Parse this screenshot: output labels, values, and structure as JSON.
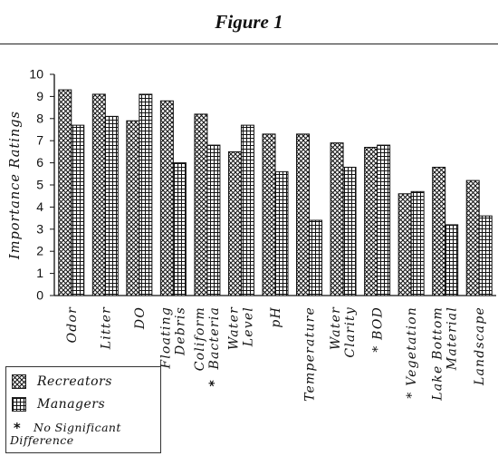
{
  "figure_title": "Figure 1",
  "chart_data": {
    "type": "bar",
    "ylabel": "Importance Ratings",
    "xlabel": "",
    "ylim": [
      0,
      10
    ],
    "yticks": [
      0,
      1,
      2,
      3,
      4,
      5,
      6,
      7,
      8,
      9,
      10
    ],
    "grid": false,
    "categories": [
      {
        "lines": [
          "Odor"
        ],
        "marked": false
      },
      {
        "lines": [
          "Litter"
        ],
        "marked": false
      },
      {
        "lines": [
          "DO"
        ],
        "marked": false
      },
      {
        "lines": [
          "Floating",
          "Debris"
        ],
        "marked": false
      },
      {
        "lines": [
          "Coliform",
          "Bacteria"
        ],
        "marked": true
      },
      {
        "lines": [
          "Water",
          "Level"
        ],
        "marked": false
      },
      {
        "lines": [
          "pH"
        ],
        "marked": false
      },
      {
        "lines": [
          "Temperature"
        ],
        "marked": false
      },
      {
        "lines": [
          "Water",
          "Clarity"
        ],
        "marked": false
      },
      {
        "lines": [
          "BOD"
        ],
        "marked": true
      },
      {
        "lines": [
          "Vegetation"
        ],
        "marked": true
      },
      {
        "lines": [
          "Lake Bottom",
          "Material"
        ],
        "marked": false
      },
      {
        "lines": [
          "Landscape"
        ],
        "marked": false
      }
    ],
    "series": [
      {
        "name": "Recreators",
        "pattern": "crosshatch",
        "values": [
          9.3,
          9.1,
          7.9,
          8.8,
          8.2,
          6.5,
          7.3,
          7.3,
          6.9,
          6.7,
          4.6,
          5.8,
          5.2
        ]
      },
      {
        "name": "Managers",
        "pattern": "horizontal",
        "values": [
          7.7,
          8.1,
          9.1,
          6.0,
          6.8,
          7.7,
          5.6,
          3.4,
          5.8,
          6.8,
          4.7,
          3.2,
          3.6
        ]
      }
    ],
    "legend": {
      "position": "bottom-left",
      "note_symbol": "*",
      "note_lines": [
        "No Significant",
        "Difference"
      ]
    }
  },
  "marker_symbol": "*"
}
